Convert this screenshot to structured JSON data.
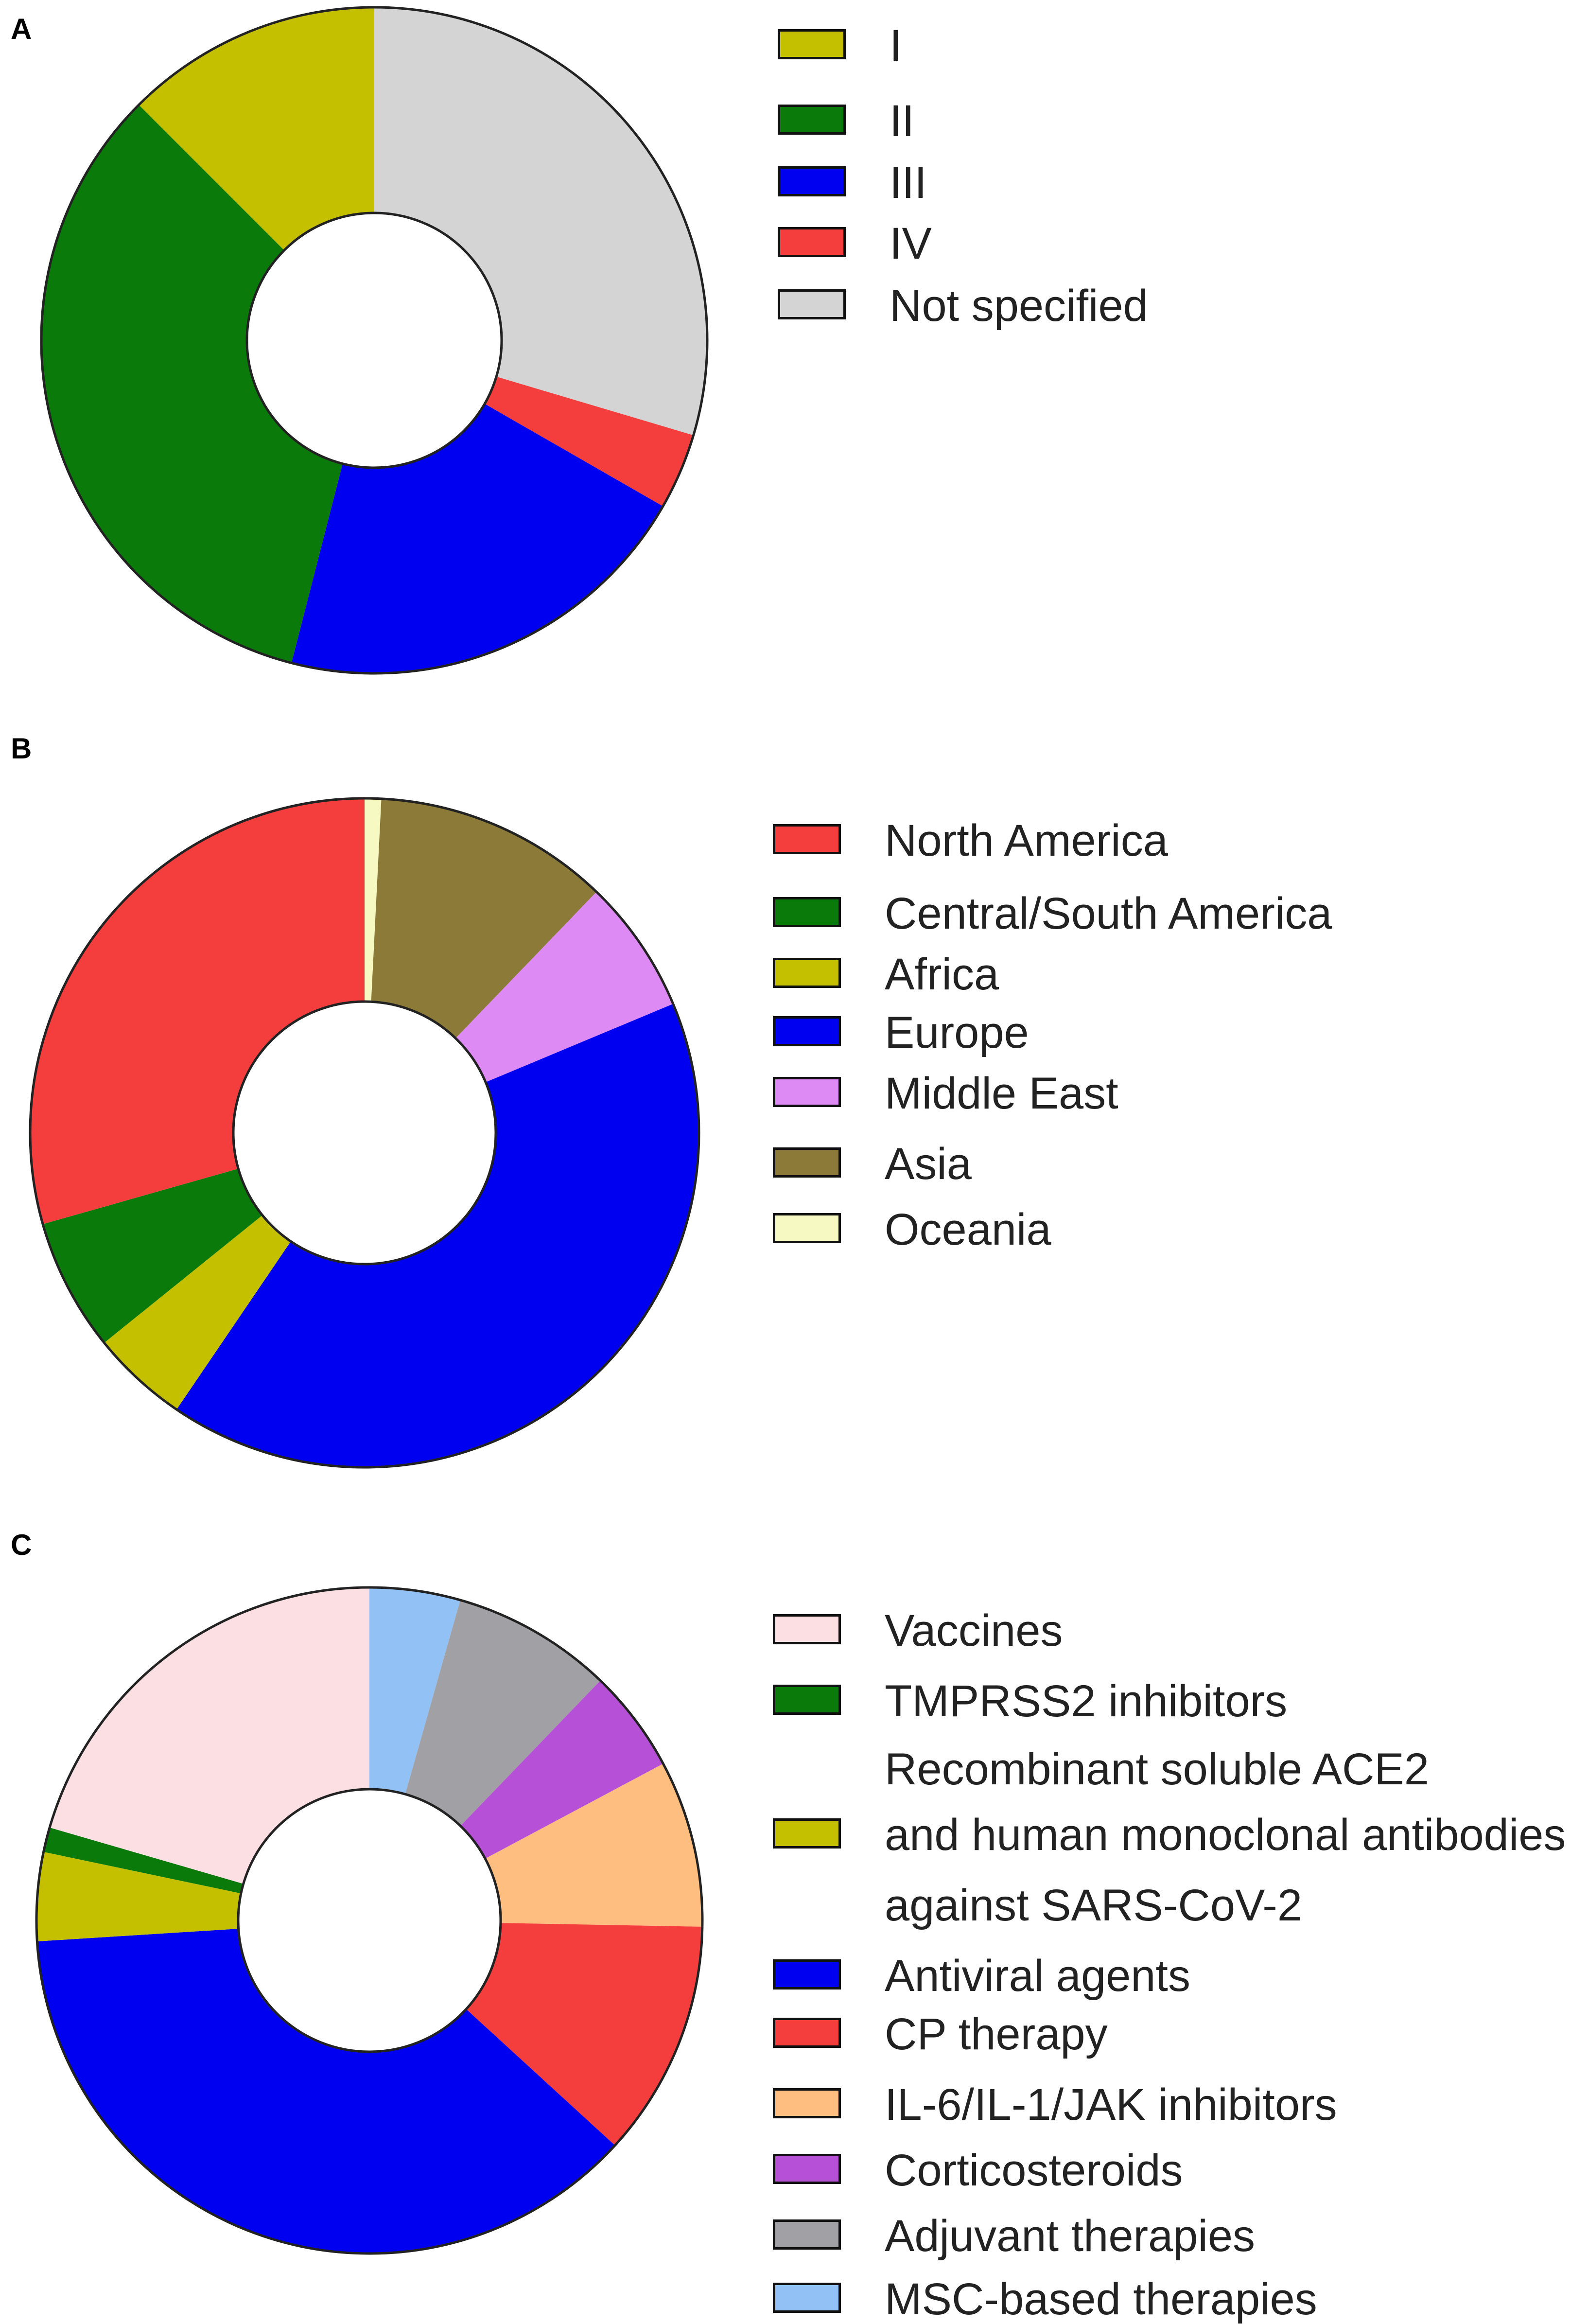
{
  "chart_data": [
    {
      "panel": "A",
      "type": "pie",
      "categories": [
        "I",
        "II",
        "III",
        "IV",
        "Not specified"
      ],
      "values": [
        12.5,
        33.5,
        20.7,
        3.7,
        29.6
      ],
      "order": [
        "Not specified",
        "IV",
        "III",
        "II",
        "I"
      ],
      "colors": {
        "I": "#c4c000",
        "II": "#0a7a0a",
        "III": "#0000f0",
        "IV": "#f43e3e",
        "Not specified": "#d4d4d4"
      },
      "legend_position": "right",
      "legend_entries": [
        "I",
        "II",
        "III",
        "IV",
        "Not specified"
      ]
    },
    {
      "panel": "B",
      "type": "pie",
      "categories": [
        "North America",
        "Central/South America",
        "Africa",
        "Europe",
        "Middle East",
        "Asia",
        "Oceania"
      ],
      "values": [
        29.4,
        6.4,
        4.7,
        40.8,
        6.5,
        11.4,
        0.8
      ],
      "order": [
        "Oceania",
        "Asia",
        "Middle East",
        "Europe",
        "Africa",
        "Central/South America",
        "North America"
      ],
      "colors": {
        "North America": "#f43e3e",
        "Central/South America": "#0a7a0a",
        "Africa": "#c4c000",
        "Europe": "#0000f0",
        "Middle East": "#de8af5",
        "Asia": "#8b7a38",
        "Oceania": "#f7f9c3"
      },
      "legend_position": "right",
      "legend_entries": [
        "North America",
        "Central/South America",
        "Africa",
        "Europe",
        "Middle East",
        "Asia",
        "Oceania"
      ]
    },
    {
      "panel": "C",
      "type": "pie",
      "categories": [
        "Vaccines",
        "TMPRSS2 inhibitors",
        "Recombinant soluble ACE2 and human monoclonal antibodies against SARS-CoV-2",
        "Antiviral agents",
        "CP therapy",
        "IL-6/IL-1/JAK inhibitors",
        "Corticosteroids",
        "Adjuvant therapies",
        "MSC-based therapies"
      ],
      "values": [
        20.5,
        1.2,
        4.3,
        37.2,
        11.5,
        8.1,
        5.0,
        7.8,
        4.4
      ],
      "order": [
        "MSC-based therapies",
        "Adjuvant therapies",
        "Corticosteroids",
        "IL-6/IL-1/JAK inhibitors",
        "CP therapy",
        "Antiviral agents",
        "Recombinant soluble ACE2 and human monoclonal antibodies against SARS-CoV-2",
        "TMPRSS2 inhibitors",
        "Vaccines"
      ],
      "colors": {
        "Vaccines": "#fbdfe2",
        "TMPRSS2 inhibitors": "#0a7a0a",
        "Recombinant soluble ACE2 and human monoclonal antibodies against SARS-CoV-2": "#c4c000",
        "Antiviral agents": "#0000f0",
        "CP therapy": "#f43e3e",
        "IL-6/IL-1/JAK inhibitors": "#fdbe80",
        "Corticosteroids": "#b650d6",
        "Adjuvant therapies": "#a0a0a5",
        "MSC-based therapies": "#92c2f5"
      },
      "legend_position": "right",
      "legend_entries": [
        "Vaccines",
        "TMPRSS2 inhibitors",
        "Recombinant soluble ACE2",
        "and human monoclonal antibodies",
        "against SARS-CoV-2",
        "Antiviral agents",
        "CP therapy",
        "IL-6/IL-1/JAK inhibitors",
        "Corticosteroids",
        "Adjuvant therapies",
        "MSC-based therapies"
      ]
    }
  ],
  "panels": [
    {
      "letter": "A"
    },
    {
      "letter": "B"
    },
    {
      "letter": "C"
    }
  ]
}
